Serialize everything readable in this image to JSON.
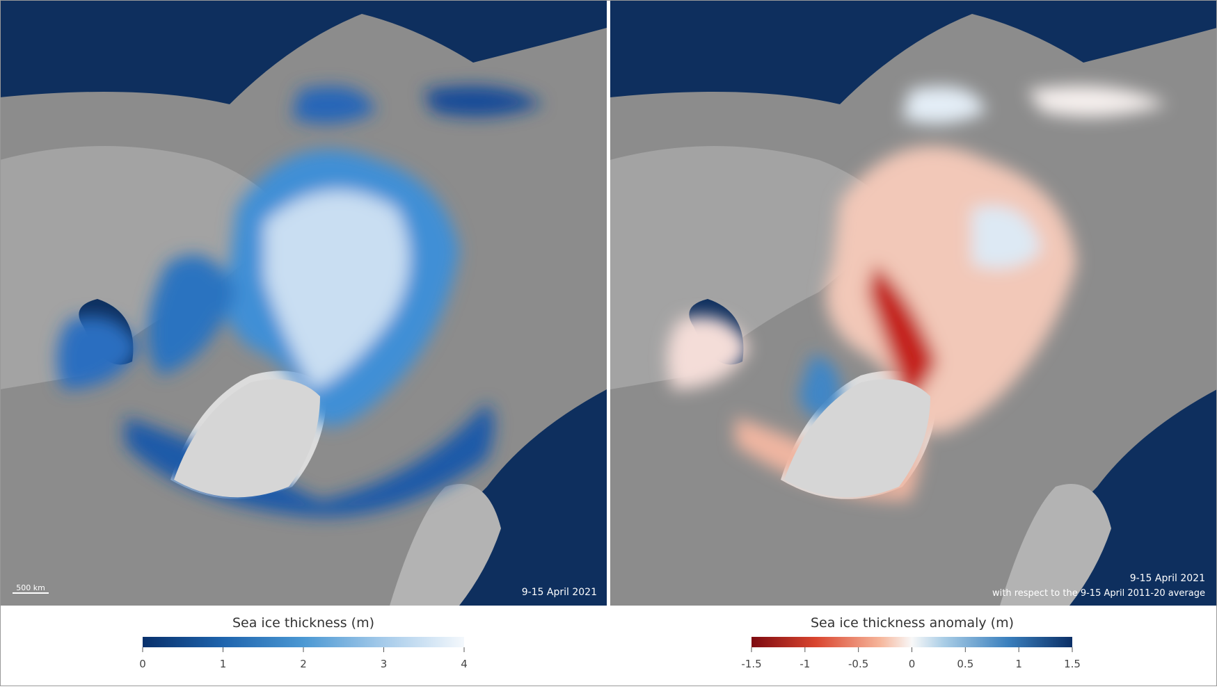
{
  "panels": [
    {
      "scale_label": "500 km",
      "date": "9-15 April 2021",
      "colorbar": {
        "title": "Sea ice thickness (m)",
        "ticks": [
          0,
          1,
          2,
          3,
          4
        ]
      }
    },
    {
      "date": "9-15 April 2021",
      "note": "with respect to the 9-15 April 2011-20 average",
      "colorbar": {
        "title": "Sea ice thickness anomaly (m)",
        "ticks": [
          -1.5,
          -1,
          -0.5,
          0,
          0.5,
          1,
          1.5
        ]
      }
    }
  ]
}
